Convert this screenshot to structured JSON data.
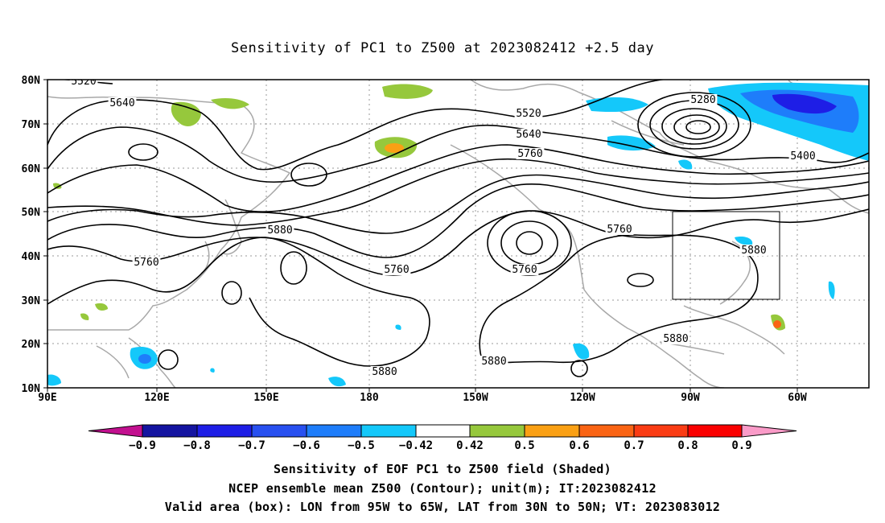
{
  "title": "Sensitivity of PC1 to Z500 at 2023082412 +2.5 day",
  "map": {
    "lat_labels": [
      "80N",
      "70N",
      "60N",
      "50N",
      "40N",
      "30N",
      "20N",
      "10N"
    ],
    "lon_labels": [
      "90E",
      "120E",
      "150E",
      "180",
      "150W",
      "120W",
      "90W",
      "60W"
    ],
    "contour_labels": [
      "5520",
      "5640",
      "5280",
      "5520",
      "5640",
      "5760",
      "5400",
      "5880",
      "5760",
      "5760",
      "5760",
      "5880",
      "5760",
      "5880",
      "5880",
      "5880"
    ],
    "valid_box": {
      "lon_west": "95W",
      "lon_east": "65W",
      "lat_south": "30N",
      "lat_north": "50N"
    }
  },
  "colorbar": {
    "labels": [
      "-0.9",
      "-0.8",
      "-0.7",
      "-0.6",
      "-0.5",
      "-0.42",
      "0.42",
      "0.5",
      "0.6",
      "0.7",
      "0.8",
      "0.9"
    ],
    "colors": [
      "#c2108f",
      "#1414a0",
      "#1e1ee6",
      "#2850f0",
      "#1e7dfa",
      "#14c8fa",
      "#ffffff",
      "#96c83c",
      "#faa014",
      "#fa6414",
      "#fa3c14",
      "#fa0000",
      "#fa9bc8"
    ]
  },
  "captions": {
    "line1": "Sensitivity of EOF PC1 to Z500 field (Shaded)",
    "line2": "NCEP ensemble mean Z500 (Contour); unit(m); IT:2023082412",
    "line3": "Valid area (box): LON from 95W to 65W, LAT from 30N to 50N; VT: 2023083012"
  }
}
